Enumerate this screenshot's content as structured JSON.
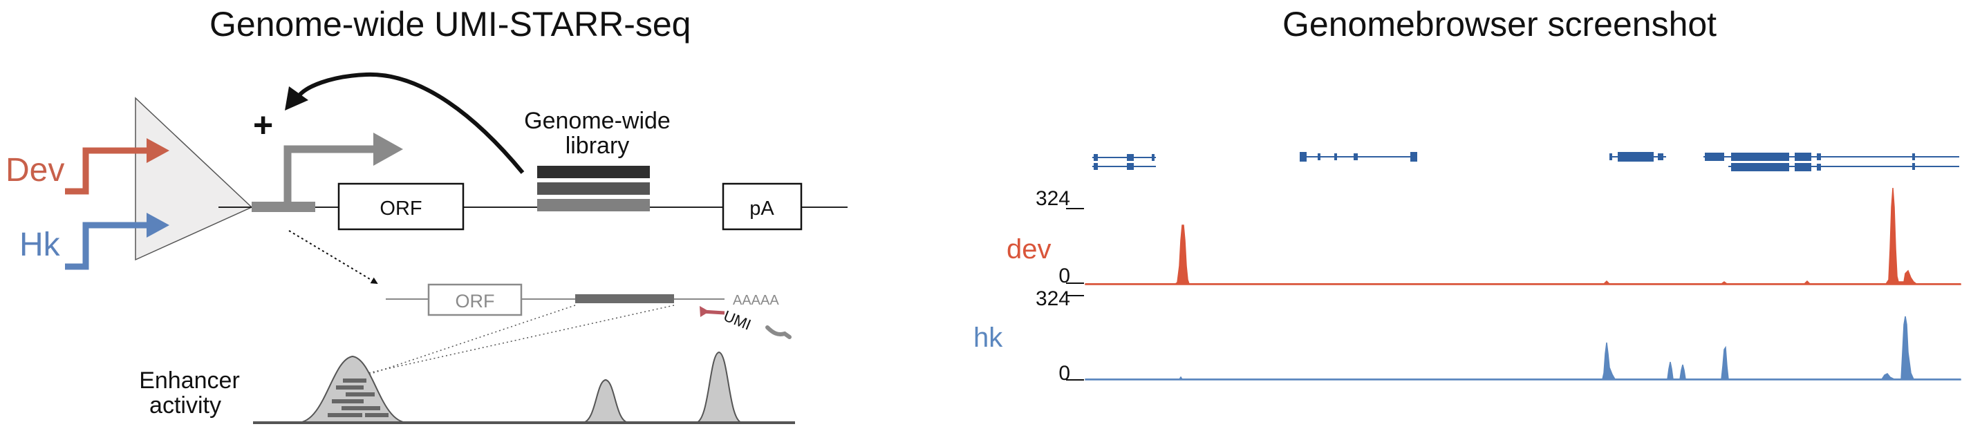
{
  "left_panel": {
    "title": "Genome-wide UMI-STARR-seq",
    "plus_sign": "+",
    "dev_label": "Dev",
    "hk_label": "Hk",
    "library_label_line1": "Genome-wide",
    "library_label_line2": "library",
    "orf_label": "ORF",
    "pa_label": "pA",
    "transcript_orf_label": "ORF",
    "polya_label": "AAAAA",
    "umi_label": "UMI",
    "enhancer_label_line1": "Enhancer",
    "enhancer_label_line2": "activity",
    "colors": {
      "dev": "#c8604a",
      "hk": "#5b82bb",
      "gray": "#8a8a8a",
      "dark": "#2e2e2e"
    }
  },
  "right_panel": {
    "title": "Genomebrowser screenshot",
    "tracks": [
      {
        "name": "dev",
        "ymax": "324",
        "ymin": "0",
        "color": "#d9553a"
      },
      {
        "name": "hk",
        "ymax": "324",
        "ymin": "0",
        "color": "#5b87bf"
      }
    ],
    "gene_color": "#2f5fa0"
  }
}
